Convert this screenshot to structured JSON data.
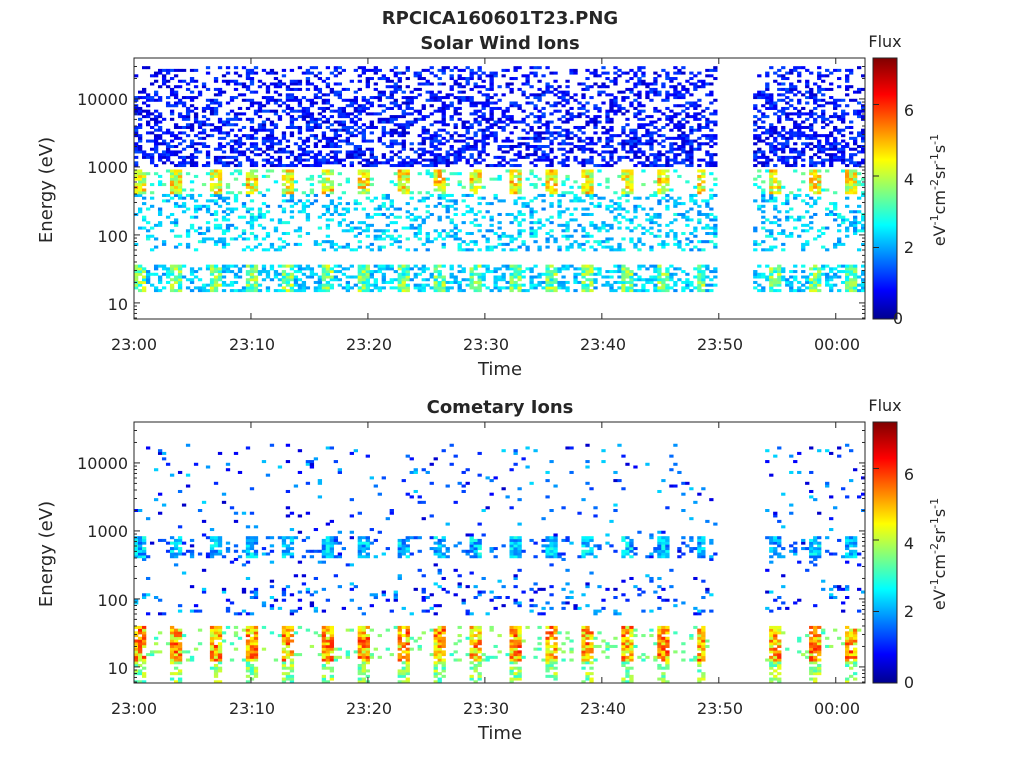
{
  "figure": {
    "title": "RPCICA160601T23.PNG"
  },
  "chart_data": [
    {
      "type": "heatmap",
      "title": "Solar Wind Ions",
      "xlabel": "Time",
      "ylabel": "Energy (eV)",
      "x_ticks": [
        "23:00",
        "23:10",
        "23:20",
        "23:30",
        "23:40",
        "23:50",
        "00:00"
      ],
      "y_ticks": [
        "10",
        "100",
        "1000",
        "10000"
      ],
      "y_scale": "log",
      "ylim": [
        5.8,
        40000
      ],
      "colorbar": {
        "title": "Flux",
        "label": "eV-1cm-2sr-1s-1",
        "ticks": [
          "0",
          "2",
          "4",
          "6"
        ],
        "range": [
          0,
          7.3
        ],
        "colormap": "jet"
      },
      "data_gap": [
        "23:50",
        "23:53"
      ],
      "features": [
        {
          "energy_eV": [
            400,
            900
          ],
          "flux": [
            3.5,
            5.5
          ],
          "note": "periodic bursts ~3 min"
        },
        {
          "energy_eV": [
            15,
            35
          ],
          "flux": [
            2.5,
            4.5
          ],
          "note": "low-energy band"
        },
        {
          "energy_eV": [
            1000,
            30000
          ],
          "flux": [
            0.5,
            1.5
          ],
          "note": "sparse background"
        }
      ]
    },
    {
      "type": "heatmap",
      "title": "Cometary Ions",
      "xlabel": "Time",
      "ylabel": "Energy (eV)",
      "x_ticks": [
        "23:00",
        "23:10",
        "23:20",
        "23:30",
        "23:40",
        "23:50",
        "00:00"
      ],
      "y_ticks": [
        "10",
        "100",
        "1000",
        "10000"
      ],
      "y_scale": "log",
      "ylim": [
        5.8,
        40000
      ],
      "colorbar": {
        "title": "Flux",
        "label": "eV-1cm-2sr-1s-1",
        "ticks": [
          "0",
          "2",
          "4",
          "6"
        ],
        "range": [
          0,
          7.3
        ],
        "colormap": "jet"
      },
      "data_gap": [
        "23:50",
        "23:54"
      ],
      "features": [
        {
          "energy_eV": [
            12,
            40
          ],
          "flux": [
            4.0,
            6.2
          ],
          "note": "strong periodic low-energy bursts"
        },
        {
          "energy_eV": [
            400,
            800
          ],
          "flux": [
            1.5,
            3.0
          ],
          "note": "periodic mid-energy bursts"
        },
        {
          "energy_eV": [
            60,
            20000
          ],
          "flux": [
            0.5,
            2.5
          ],
          "note": "sparse scatter"
        }
      ]
    }
  ]
}
